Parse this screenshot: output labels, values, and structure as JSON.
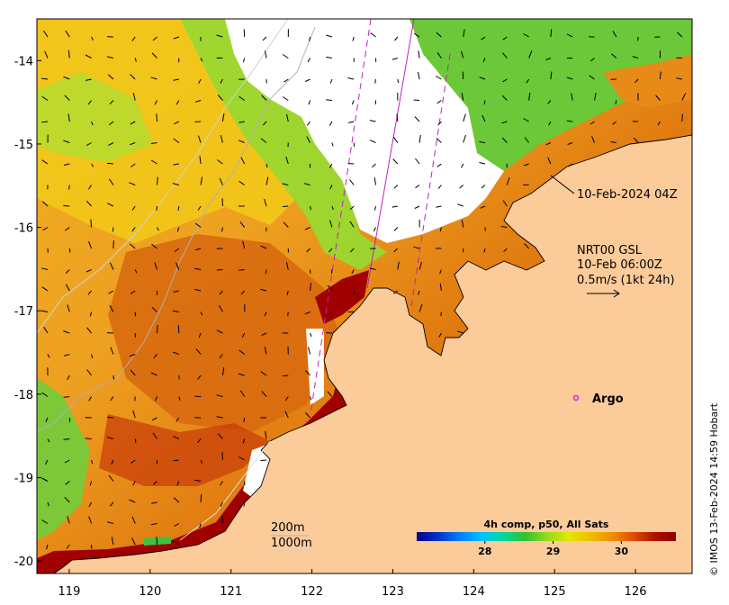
{
  "map": {
    "x_ticks": [
      "119",
      "120",
      "121",
      "122",
      "123",
      "124",
      "125",
      "126"
    ],
    "y_ticks": [
      "-14",
      "-15",
      "-16",
      "-17",
      "-18",
      "-19",
      "-20"
    ],
    "lon_range": [
      118.6,
      126.7
    ],
    "lat_range": [
      -20.15,
      -13.5
    ]
  },
  "annotations": {
    "swath_time": "10-Feb-2024 04Z",
    "current_title": "NRT00 GSL",
    "current_time": "10-Feb 06:00Z",
    "current_scale": "0.5m/s (1kt 24h)",
    "argo_label": "Argo",
    "depth_200": "200m",
    "depth_1000": "1000m"
  },
  "colorbar": {
    "title": "4h comp, p50, All Sats",
    "ticks": [
      "28",
      "29",
      "30"
    ],
    "tick_values": [
      28,
      29,
      30
    ],
    "range": [
      27.0,
      30.8
    ],
    "colors": [
      "#00008b",
      "#0033cc",
      "#0080ff",
      "#00c0ff",
      "#00d8a0",
      "#30c030",
      "#90d820",
      "#e0e800",
      "#f0c000",
      "#f09000",
      "#e05000",
      "#b01000",
      "#8b0000"
    ]
  },
  "credit": "© IMOS 13-Feb-2024 14:59 Hobart",
  "colors": {
    "land": "#fccb9a",
    "argo": "#e020e0",
    "swath_line": "#c020c0",
    "sst_warm": "#a00000",
    "sst_orange": "#e89010",
    "sst_yellow": "#f0c010",
    "sst_green": "#80d030"
  }
}
